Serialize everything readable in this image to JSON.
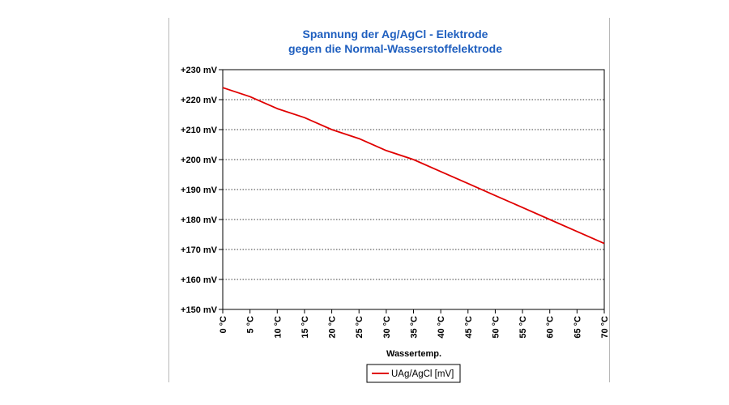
{
  "chart_data": {
    "type": "line",
    "title_lines": [
      "Spannung der Ag/AgCl - Elektrode",
      "gegen die Normal-Wasserstoffelektrode"
    ],
    "xlabel": "Wassertemp.",
    "ylabel": "",
    "x_tick_labels": [
      "0 °C",
      "5 °C",
      "10 °C",
      "15 °C",
      "20 °C",
      "25 °C",
      "30 °C",
      "35 °C",
      "40 °C",
      "45 °C",
      "50 °C",
      "55 °C",
      "60 °C",
      "65 °C",
      "70 °C"
    ],
    "y_tick_labels": [
      "+150 mV",
      "+160 mV",
      "+170 mV",
      "+180 mV",
      "+190 mV",
      "+200 mV",
      "+210 mV",
      "+220 mV",
      "+230 mV"
    ],
    "xlim": [
      0,
      70
    ],
    "ylim": [
      150,
      230
    ],
    "grid": "horizontal dotted",
    "legend_position": "bottom",
    "series": [
      {
        "name": "UAg/AgCl [mV]",
        "color": "#e00000",
        "x": [
          0,
          5,
          10,
          15,
          20,
          25,
          30,
          35,
          40,
          45,
          50,
          55,
          60,
          65,
          70
        ],
        "y": [
          224,
          221,
          217,
          214,
          210,
          207,
          203,
          200,
          196,
          192,
          188,
          184,
          180,
          176,
          172
        ]
      }
    ]
  }
}
